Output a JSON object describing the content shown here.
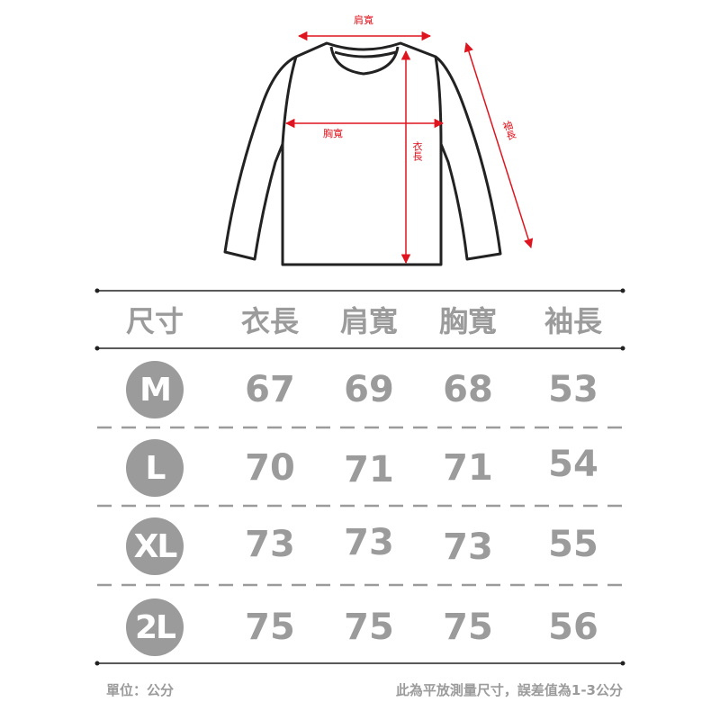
{
  "diagram": {
    "labels": {
      "shoulder": "肩寬",
      "chest": "胸寬",
      "length": "衣長",
      "sleeve": "袖長"
    },
    "arrow_color": "#e0141e",
    "outline_color": "#222222"
  },
  "table": {
    "headers": [
      "尺寸",
      "衣長",
      "肩寬",
      "胸寬",
      "袖長"
    ],
    "rows": [
      {
        "size": "M",
        "values": [
          "67",
          "69",
          "68",
          "53"
        ]
      },
      {
        "size": "L",
        "values": [
          "70",
          "71",
          "71",
          "54"
        ]
      },
      {
        "size": "XL",
        "values": [
          "73",
          "73",
          "73",
          "55"
        ]
      },
      {
        "size": "2L",
        "values": [
          "75",
          "75",
          "75",
          "56"
        ]
      }
    ],
    "text_color": "#9b9b9b"
  },
  "footer": {
    "unit": "單位：公分",
    "note": "此為平放測量尺寸，誤差值為1-3公分"
  }
}
